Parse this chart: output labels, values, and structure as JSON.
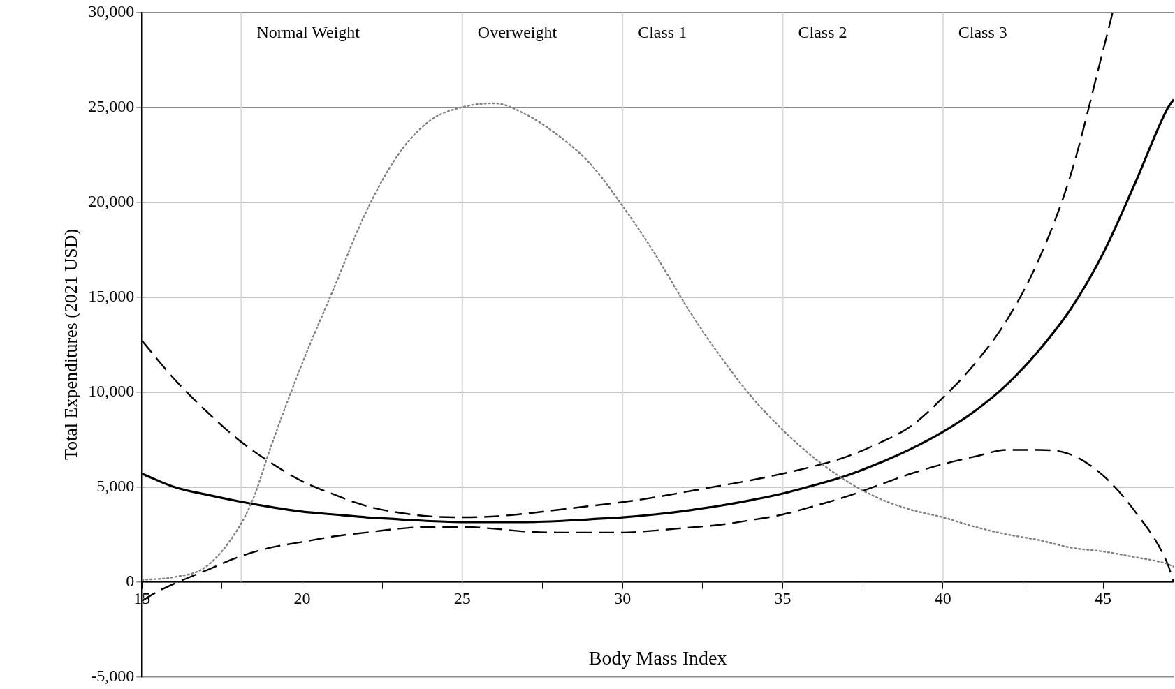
{
  "chart_data": {
    "type": "line",
    "xlabel": "Body Mass Index",
    "ylabel": "Total Expenditures (2021 USD)",
    "xlim": [
      15,
      47.2
    ],
    "ylim": [
      -5000,
      30000
    ],
    "xticks": [
      15,
      {
        "value": 17.5,
        "label": null
      },
      20,
      {
        "value": 22.5,
        "label": null
      },
      25,
      {
        "value": 27.5,
        "label": null
      },
      30,
      {
        "value": 32.5,
        "label": null
      },
      35,
      {
        "value": 37.5,
        "label": null
      },
      40,
      {
        "value": 42.5,
        "label": null
      },
      45
    ],
    "yticks": [
      {
        "value": -5000,
        "label": "-5,000"
      },
      0,
      {
        "value": 5000,
        "label": "5,000"
      },
      {
        "value": 10000,
        "label": "10,000"
      },
      {
        "value": 15000,
        "label": "15,000"
      },
      {
        "value": 20000,
        "label": "20,000"
      },
      {
        "value": 25000,
        "label": "25,000"
      },
      {
        "value": 30000,
        "label": "30,000"
      }
    ],
    "grid": "y",
    "legend": false,
    "marker": "none",
    "ref_lines": [
      {
        "axis": "x",
        "value": 18.1,
        "color": "#d9d9d9"
      },
      {
        "axis": "x",
        "value": 25,
        "color": "#d9d9d9"
      },
      {
        "axis": "x",
        "value": 30,
        "color": "#d9d9d9"
      },
      {
        "axis": "x",
        "value": 35,
        "color": "#d9d9d9"
      },
      {
        "axis": "x",
        "value": 40,
        "color": "#d9d9d9"
      }
    ],
    "annotations": [
      "Normal Weight",
      "Overweight",
      "Class 1",
      "Class 2",
      "Class 3"
    ],
    "series": [
      {
        "color": "#808080",
        "line_style": "dotted",
        "x": [
          15,
          16,
          17,
          18,
          18.5,
          19,
          20,
          21,
          22,
          23,
          24,
          25,
          26,
          27,
          28,
          29,
          30,
          31,
          32,
          33,
          34,
          35,
          36,
          37,
          38,
          39,
          40,
          41,
          42,
          43,
          44,
          45,
          46,
          47,
          47.2
        ],
        "values": [
          100,
          250,
          800,
          2800,
          4500,
          7000,
          11500,
          15500,
          19500,
          22500,
          24300,
          25000,
          25200,
          24600,
          23500,
          22000,
          19800,
          17300,
          14500,
          12000,
          9800,
          8000,
          6500,
          5300,
          4400,
          3800,
          3400,
          2900,
          2500,
          2200,
          1800,
          1600,
          1300,
          950,
          800
        ]
      },
      {
        "color": "#000000",
        "line_style": "dashed",
        "x": [
          15,
          16,
          17,
          18,
          19,
          20,
          21,
          22,
          23,
          24,
          25,
          26,
          27,
          28,
          29,
          30,
          31,
          32,
          33,
          34,
          35,
          36,
          37,
          38,
          39,
          40,
          41,
          42,
          43,
          44,
          45,
          45.3
        ],
        "values": [
          12700,
          10700,
          9000,
          7500,
          6300,
          5300,
          4600,
          4000,
          3650,
          3450,
          3400,
          3450,
          3600,
          3800,
          4000,
          4200,
          4450,
          4750,
          5050,
          5350,
          5700,
          6100,
          6600,
          7300,
          8200,
          9700,
          11500,
          13800,
          17000,
          21500,
          28000,
          30000
        ]
      },
      {
        "color": "#000000",
        "line_style": "solid",
        "x": [
          15,
          16,
          17,
          18,
          19,
          20,
          21,
          22,
          23,
          24,
          25,
          26,
          27,
          28,
          29,
          30,
          31,
          32,
          33,
          34,
          35,
          36,
          37,
          38,
          39,
          40,
          41,
          42,
          43,
          44,
          45,
          46,
          47,
          47.2
        ],
        "values": [
          5700,
          5000,
          4600,
          4250,
          3950,
          3700,
          3550,
          3400,
          3300,
          3200,
          3150,
          3150,
          3150,
          3200,
          3300,
          3400,
          3550,
          3750,
          4000,
          4300,
          4650,
          5100,
          5600,
          6250,
          7000,
          7900,
          9000,
          10400,
          12200,
          14400,
          17300,
          21000,
          24900,
          25400
        ]
      },
      {
        "color": "#000000",
        "line_style": "dashed",
        "x": [
          15,
          15.5,
          16,
          17,
          18,
          19,
          20,
          21,
          22,
          23,
          24,
          25,
          26,
          27,
          28,
          29,
          30,
          31,
          32,
          33,
          34,
          35,
          36,
          37,
          38,
          39,
          40,
          41,
          42,
          43,
          44,
          45,
          46,
          47,
          47.2
        ],
        "values": [
          -1000,
          -500,
          -100,
          600,
          1300,
          1800,
          2100,
          2400,
          2600,
          2800,
          2900,
          2900,
          2800,
          2650,
          2600,
          2600,
          2600,
          2700,
          2850,
          3000,
          3250,
          3550,
          4000,
          4500,
          5100,
          5700,
          6200,
          6600,
          6950,
          6950,
          6700,
          5600,
          3700,
          1000,
          0
        ]
      }
    ]
  }
}
